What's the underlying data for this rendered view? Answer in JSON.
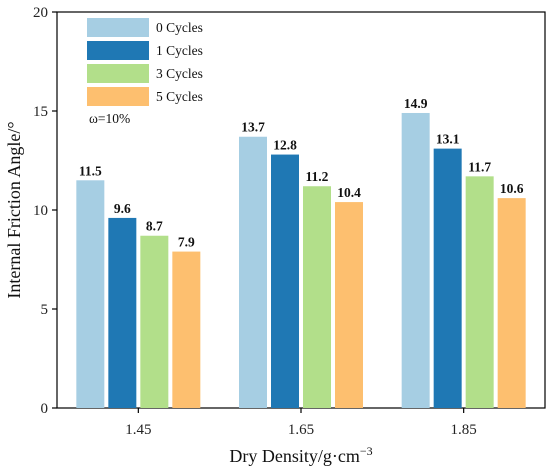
{
  "chart_data": {
    "type": "bar",
    "title": "",
    "xlabel": "Dry Density/g·cm",
    "xlabel_sup": "−3",
    "ylabel": "Internal Friction Angle/°",
    "ylim": [
      0,
      20
    ],
    "yticks": [
      0,
      5,
      10,
      15,
      20
    ],
    "grid": false,
    "legend_position": "top-left",
    "annotation": "ω=10%",
    "categories": [
      "1.45",
      "1.65",
      "1.85"
    ],
    "series": [
      {
        "name": "0 Cycles",
        "color": "#a6cee3",
        "values": [
          11.5,
          13.7,
          14.9
        ],
        "labels": [
          "11.5",
          "13.7",
          "14.9"
        ]
      },
      {
        "name": "1 Cycles",
        "color": "#1f78b4",
        "values": [
          9.6,
          12.8,
          13.1
        ],
        "labels": [
          "9.6",
          "12.8",
          "13.1"
        ]
      },
      {
        "name": "3 Cycles",
        "color": "#b2df8a",
        "values": [
          8.7,
          11.2,
          11.7
        ],
        "labels": [
          "8.7",
          "11.2",
          "11.7"
        ]
      },
      {
        "name": "5 Cycles",
        "color": "#fdbf6f",
        "values": [
          7.9,
          10.4,
          10.6
        ],
        "labels": [
          "7.9",
          "10.4",
          "10.6"
        ]
      }
    ]
  }
}
